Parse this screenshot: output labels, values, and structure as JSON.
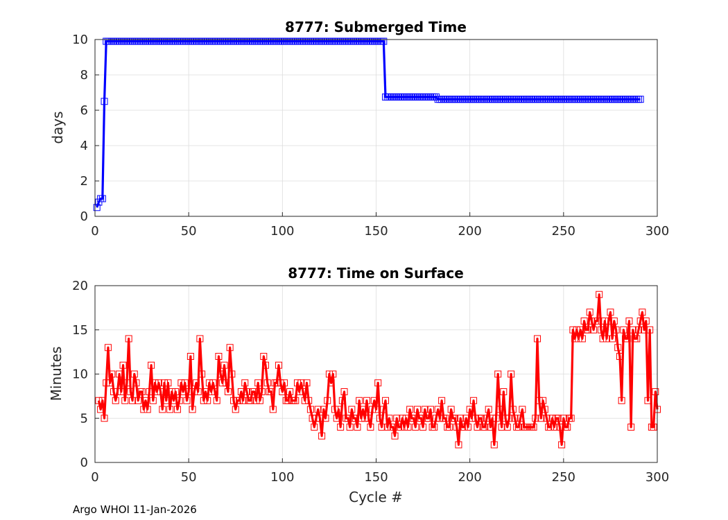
{
  "chart_data": [
    {
      "type": "line",
      "title": "8777: Submerged Time",
      "xlabel": "",
      "ylabel": "days",
      "xlim": [
        0,
        300
      ],
      "ylim": [
        0,
        10
      ],
      "xticks": [
        0,
        50,
        100,
        150,
        200,
        250,
        300
      ],
      "yticks": [
        0,
        2,
        4,
        6,
        8,
        10
      ],
      "grid": true,
      "marker": "square",
      "color": "#0000ff",
      "series": [
        {
          "name": "Submerged Time",
          "values_note": "values by cycle 1..291",
          "segments": [
            {
              "from": 1,
              "to": 1,
              "value": 0.5
            },
            {
              "from": 2,
              "to": 2,
              "value": 0.8
            },
            {
              "from": 3,
              "to": 4,
              "value": 1.0
            },
            {
              "from": 5,
              "to": 5,
              "value": 6.5
            },
            {
              "from": 6,
              "to": 154,
              "value": 9.9
            },
            {
              "from": 155,
              "to": 182,
              "value": 6.75
            },
            {
              "from": 183,
              "to": 291,
              "value": 6.62
            }
          ]
        }
      ]
    },
    {
      "type": "line",
      "title": "8777: Time on Surface",
      "xlabel": "Cycle #",
      "ylabel": "Minutes",
      "xlim": [
        0,
        300
      ],
      "ylim": [
        0,
        20
      ],
      "xticks": [
        0,
        50,
        100,
        150,
        200,
        250,
        300
      ],
      "yticks": [
        0,
        5,
        10,
        15,
        20
      ],
      "grid": true,
      "marker": "square",
      "color": "#ff0000",
      "series": [
        {
          "name": "Time on Surface",
          "x_start": 2,
          "values": [
            7,
            6,
            7,
            5,
            9,
            13,
            9,
            10,
            8,
            7,
            8,
            10,
            8,
            11,
            7,
            9,
            14,
            8,
            7,
            10,
            9,
            7,
            8,
            8,
            6,
            7,
            6,
            8,
            11,
            7,
            9,
            8,
            9,
            8,
            6,
            9,
            7,
            9,
            6,
            8,
            7,
            8,
            6,
            7,
            9,
            8,
            9,
            7,
            8,
            12,
            6,
            8,
            9,
            8,
            14,
            10,
            7,
            8,
            7,
            9,
            8,
            9,
            8,
            7,
            12,
            10,
            9,
            11,
            9,
            8,
            13,
            10,
            7,
            6,
            7,
            7,
            8,
            7,
            9,
            8,
            7,
            7,
            8,
            8,
            7,
            9,
            7,
            8,
            12,
            11,
            9,
            8,
            8,
            6,
            9,
            9,
            11,
            9,
            8,
            9,
            7,
            7,
            8,
            7,
            7,
            7,
            9,
            8,
            9,
            8,
            7,
            9,
            7,
            6,
            5,
            4,
            5,
            6,
            5,
            3,
            6,
            5,
            7,
            10,
            9,
            10,
            6,
            5,
            6,
            4,
            7,
            8,
            5,
            5,
            4,
            6,
            5,
            5,
            4,
            7,
            5,
            6,
            5,
            7,
            5,
            4,
            6,
            7,
            6,
            9,
            5,
            4,
            6,
            7,
            4,
            5,
            4,
            4,
            3,
            5,
            4,
            4,
            5,
            4,
            5,
            4,
            6,
            5,
            5,
            4,
            6,
            5,
            5,
            4,
            6,
            5,
            5,
            6,
            4,
            4,
            5,
            6,
            5,
            7,
            5,
            5,
            4,
            4,
            6,
            5,
            5,
            4,
            2,
            5,
            4,
            4,
            5,
            4,
            6,
            5,
            7,
            5,
            4,
            5,
            5,
            4,
            4,
            5,
            6,
            4,
            5,
            2,
            5,
            10,
            6,
            4,
            8,
            5,
            4,
            5,
            10,
            6,
            5,
            4,
            4,
            5,
            6,
            4,
            4,
            4,
            4,
            4,
            4,
            5,
            14,
            7,
            5,
            7,
            6,
            5,
            4,
            4,
            5,
            4,
            5,
            5,
            4,
            2,
            5,
            4,
            4,
            5,
            5,
            15,
            14,
            15,
            14,
            15,
            14,
            16,
            15,
            15,
            17,
            16,
            15,
            16,
            16,
            19,
            15,
            14,
            16,
            14,
            16,
            17,
            14,
            16,
            15,
            13,
            12,
            7,
            15,
            14,
            14,
            16,
            4,
            15,
            14,
            14,
            15,
            16,
            17,
            15,
            16,
            7,
            15,
            4,
            4,
            8,
            6
          ]
        }
      ]
    }
  ],
  "footer": "Argo WHOI 11-Jan-2026"
}
